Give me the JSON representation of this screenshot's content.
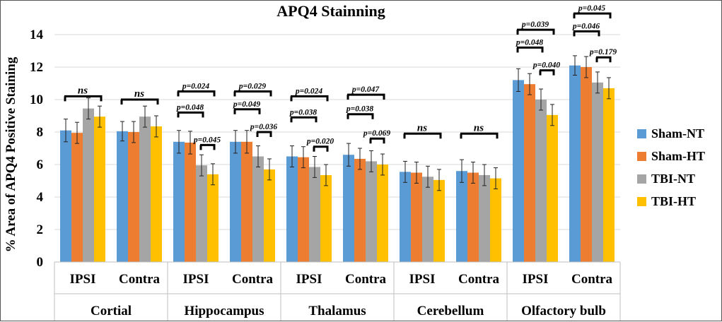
{
  "chart_data": {
    "type": "bar",
    "title": "APQ4 Stainning",
    "ylabel": "% Area of APQ4 Positive Staining",
    "xlabel": "",
    "ylim": [
      0,
      14
    ],
    "yticks": [
      0,
      2,
      4,
      6,
      8,
      10,
      12,
      14
    ],
    "grid": true,
    "legend_position": "right",
    "groups": [
      {
        "name": "Cortial",
        "categories": [
          "IPSI",
          "Contra"
        ]
      },
      {
        "name": "Hippocampus",
        "categories": [
          "IPSI",
          "Contra"
        ]
      },
      {
        "name": "Thalamus",
        "categories": [
          "IPSI",
          "Contra"
        ]
      },
      {
        "name": "Cerebellum",
        "categories": [
          "IPSI",
          "Contra"
        ]
      },
      {
        "name": "Olfactory bulb",
        "categories": [
          "IPSI",
          "Contra"
        ]
      }
    ],
    "categories": [
      "IPSI",
      "Contra",
      "IPSI",
      "Contra",
      "IPSI",
      "Contra",
      "IPSI",
      "Contra",
      "IPSI",
      "Contra"
    ],
    "series": [
      {
        "name": "Sham-NT",
        "color": "#5B9BD5",
        "values": [
          8.1,
          8.05,
          7.4,
          7.4,
          6.5,
          6.6,
          5.55,
          5.6,
          11.2,
          12.1
        ],
        "errors": [
          0.7,
          0.6,
          0.7,
          0.7,
          0.65,
          0.7,
          0.65,
          0.7,
          0.7,
          0.6
        ]
      },
      {
        "name": "Sham-HT",
        "color": "#ED7D31",
        "values": [
          7.95,
          8.0,
          7.35,
          7.4,
          6.45,
          6.35,
          5.5,
          5.5,
          10.95,
          12.0
        ],
        "errors": [
          0.65,
          0.65,
          0.7,
          0.7,
          0.65,
          0.65,
          0.65,
          0.65,
          0.65,
          0.65
        ]
      },
      {
        "name": "TBI-NT",
        "color": "#A5A5A5",
        "values": [
          9.45,
          8.95,
          5.95,
          6.5,
          5.85,
          6.2,
          5.25,
          5.35,
          10.0,
          11.05
        ],
        "errors": [
          0.65,
          0.65,
          0.65,
          0.65,
          0.65,
          0.65,
          0.65,
          0.65,
          0.65,
          0.65
        ]
      },
      {
        "name": "TBI-HT",
        "color": "#FFC000",
        "values": [
          8.95,
          8.35,
          5.4,
          5.7,
          5.35,
          6.0,
          5.05,
          5.15,
          9.05,
          10.7
        ],
        "errors": [
          0.65,
          0.65,
          0.65,
          0.65,
          0.65,
          0.65,
          0.65,
          0.65,
          0.65,
          0.65
        ]
      }
    ],
    "annotations": [
      {
        "category_index": 0,
        "items": [
          {
            "label": "ns",
            "from": 0,
            "to": 3,
            "level": 10.2
          }
        ]
      },
      {
        "category_index": 1,
        "items": [
          {
            "label": "ns",
            "from": 0,
            "to": 3,
            "level": 10.0
          }
        ]
      },
      {
        "category_index": 2,
        "items": [
          {
            "label": "p=0.024",
            "from": 0,
            "to": 3,
            "level": 10.5
          },
          {
            "label": "p=0.048",
            "from": 0,
            "to": 2,
            "level": 9.2
          },
          {
            "label": "p=0.045",
            "from": 2,
            "to": 3,
            "level": 7.2
          }
        ]
      },
      {
        "category_index": 3,
        "items": [
          {
            "label": "p=0.029",
            "from": 0,
            "to": 3,
            "level": 10.5
          },
          {
            "label": "p=0.049",
            "from": 0,
            "to": 2,
            "level": 9.4
          },
          {
            "label": "p=0.036",
            "from": 2,
            "to": 3,
            "level": 8.0
          }
        ]
      },
      {
        "category_index": 4,
        "items": [
          {
            "label": "p=0.024",
            "from": 0,
            "to": 3,
            "level": 10.2
          },
          {
            "label": "p=0.038",
            "from": 0,
            "to": 2,
            "level": 8.9
          },
          {
            "label": "p=0.020",
            "from": 2,
            "to": 3,
            "level": 7.1
          }
        ]
      },
      {
        "category_index": 5,
        "items": [
          {
            "label": "p=0.047",
            "from": 0,
            "to": 3,
            "level": 10.3
          },
          {
            "label": "p=0.038",
            "from": 0,
            "to": 2,
            "level": 9.1
          },
          {
            "label": "p=0.069",
            "from": 2,
            "to": 3,
            "level": 7.6
          }
        ]
      },
      {
        "category_index": 6,
        "items": [
          {
            "label": "ns",
            "from": 0,
            "to": 3,
            "level": 7.9
          }
        ]
      },
      {
        "category_index": 7,
        "items": [
          {
            "label": "ns",
            "from": 0,
            "to": 3,
            "level": 7.9
          }
        ]
      },
      {
        "category_index": 8,
        "items": [
          {
            "label": "p=0.039",
            "from": 0,
            "to": 3,
            "level": 14.3
          },
          {
            "label": "p=0.048",
            "from": 0,
            "to": 2,
            "level": 13.2
          },
          {
            "label": "p=0.040",
            "from": 2,
            "to": 3,
            "level": 11.8
          }
        ]
      },
      {
        "category_index": 9,
        "items": [
          {
            "label": "p=0.045",
            "from": 0,
            "to": 3,
            "level": 15.3
          },
          {
            "label": "p=0.046",
            "from": 0,
            "to": 2,
            "level": 14.2
          },
          {
            "label": "p=0.179",
            "from": 2,
            "to": 3,
            "level": 12.6
          }
        ]
      }
    ]
  }
}
